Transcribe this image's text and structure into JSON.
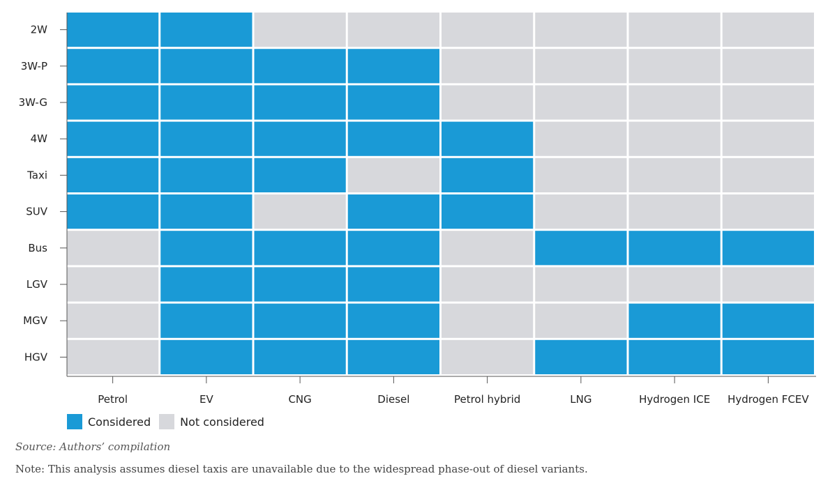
{
  "chart_data": {
    "type": "heatmap",
    "rows": [
      "2W",
      "3W-P",
      "3W-G",
      "4W",
      "Taxi",
      "SUV",
      "Bus",
      "LGV",
      "MGV",
      "HGV"
    ],
    "columns": [
      "Petrol",
      "EV",
      "CNG",
      "Diesel",
      "Petrol hybrid",
      "LNG",
      "Hydrogen ICE",
      "Hydrogen FCEV"
    ],
    "values": [
      [
        1,
        1,
        0,
        0,
        0,
        0,
        0,
        0
      ],
      [
        1,
        1,
        1,
        1,
        0,
        0,
        0,
        0
      ],
      [
        1,
        1,
        1,
        1,
        0,
        0,
        0,
        0
      ],
      [
        1,
        1,
        1,
        1,
        1,
        0,
        0,
        0
      ],
      [
        1,
        1,
        1,
        0,
        1,
        0,
        0,
        0
      ],
      [
        1,
        1,
        0,
        1,
        1,
        0,
        0,
        0
      ],
      [
        0,
        1,
        1,
        1,
        0,
        1,
        1,
        1
      ],
      [
        0,
        1,
        1,
        1,
        0,
        0,
        0,
        0
      ],
      [
        0,
        1,
        1,
        1,
        0,
        0,
        1,
        1
      ],
      [
        0,
        1,
        1,
        1,
        0,
        1,
        1,
        1
      ]
    ],
    "value_labels": {
      "1": "Considered",
      "0": "Not considered"
    },
    "colors": {
      "considered": "#1a9ad6",
      "not_considered": "#d7d8dc"
    },
    "legend_position": "bottom-left"
  },
  "legend": {
    "considered": "Considered",
    "not_considered": "Not considered"
  },
  "source": "Source: Authors’ compilation",
  "note": "Note: This analysis assumes diesel taxis are unavailable due to the widespread phase-out of diesel variants."
}
